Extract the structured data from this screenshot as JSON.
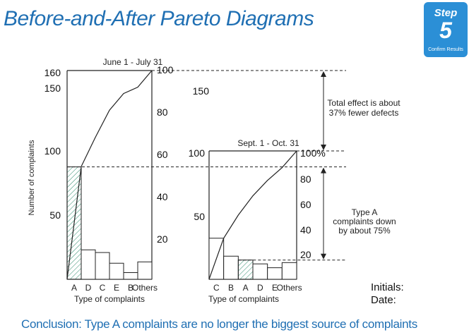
{
  "title": "Before-and-After Pareto Diagrams",
  "step_badge": {
    "word": "Step",
    "number": "5",
    "subtitle": "Confirm Results",
    "color": "#2b8fd6"
  },
  "colors": {
    "accent": "#1f6fb3",
    "hatch": "#2a8a6a",
    "line": "#222222"
  },
  "y_axis_label": "Number of complaints",
  "left_y_ticks": [
    "160",
    "150",
    "100",
    "50"
  ],
  "cumulative_ticks_before": [
    "100",
    "80",
    "60",
    "40",
    "20"
  ],
  "chart_data": [
    {
      "type": "bar",
      "title": "June 1 - July 31",
      "xlabel": "Type of complaints",
      "ylabel": "Number of complaints",
      "categories": [
        "A",
        "D",
        "C",
        "E",
        "B",
        "Others"
      ],
      "values": [
        84,
        22,
        20,
        12,
        5,
        13
      ],
      "ylim": [
        0,
        156
      ],
      "cumulative_percent": [
        0,
        54,
        68,
        81,
        89,
        92,
        100
      ],
      "highlight_category": "A"
    },
    {
      "type": "bar",
      "title": "Sept. 1 - Oct. 31",
      "xlabel": "Type of complaints",
      "categories": [
        "C",
        "B",
        "A",
        "D",
        "E",
        "Others"
      ],
      "values": [
        32,
        18,
        15,
        12,
        9,
        13
      ],
      "ylim": [
        0,
        100
      ],
      "y_ticks": [
        "100",
        "50"
      ],
      "secondary_ticks": [
        "100%",
        "80",
        "60",
        "40",
        "20"
      ],
      "cumulative_percent": [
        0,
        32,
        50,
        65,
        77,
        87,
        100
      ],
      "highlight_category": "A"
    }
  ],
  "annotations": {
    "total_effect": [
      "Total effect is about",
      "37% fewer defects"
    ],
    "type_a": [
      "Type A",
      "complaints down",
      "by about 75%"
    ]
  },
  "signoff": {
    "initials": "Initials:",
    "date": "Date:"
  },
  "conclusion": "Conclusion:  Type A complaints are no longer the biggest source of complaints"
}
